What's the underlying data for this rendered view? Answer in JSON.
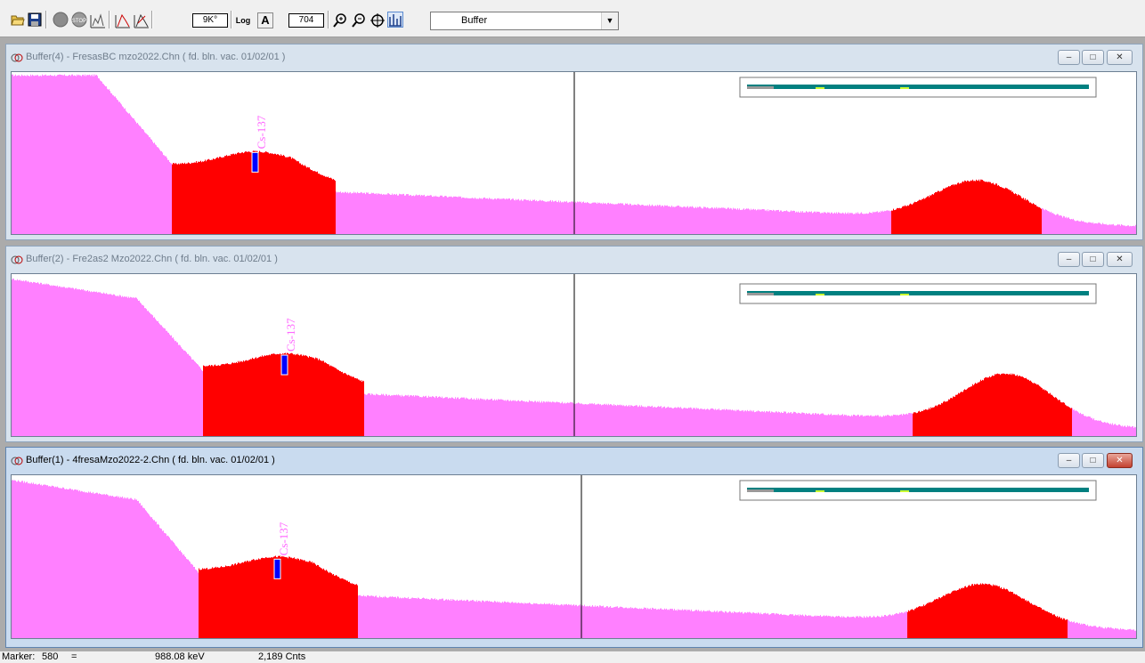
{
  "toolbar": {
    "live_time_box": "9K°",
    "log_label": "Log",
    "auto_label": "A",
    "channel_box": "704",
    "buffer_select": "Buffer"
  },
  "windows": [
    {
      "title": "Buffer(4) - FresasBC mzo2022.Chn ( fd. bln. vac. 01/02/01 )",
      "active": false,
      "peak_label": "Cs-137"
    },
    {
      "title": "Buffer(2) - Fre2as2 Mzo2022.Chn ( fd. bln. vac. 01/02/01 )",
      "active": false,
      "peak_label": "Cs-137"
    },
    {
      "title": "Buffer(1) - 4fresaMzo2022-2.Chn ( fd. bln. vac. 01/02/01 )",
      "active": true,
      "peak_label": "Cs-137"
    }
  ],
  "window_buttons": {
    "minimize": "–",
    "restore": "□",
    "close": "✕"
  },
  "colors": {
    "spectrum": "#ff80ff",
    "roi": "#ff0000",
    "marker": "#000000",
    "peak_marker": "#0000ff",
    "overview_bar": "#008080"
  },
  "status": {
    "marker_label": "Marker:",
    "marker_channel": "580",
    "equals": "=",
    "energy": "988.08 keV",
    "counts": "2,189 Cnts"
  },
  "icons": [
    "open-folder-icon",
    "save-icon",
    "start-icon",
    "stop-icon",
    "clear-icon",
    "roi-mark-icon",
    "roi-unmark-icon",
    "zoom-in-icon",
    "zoom-out-icon",
    "center-icon",
    "fine-tune-icon"
  ]
}
